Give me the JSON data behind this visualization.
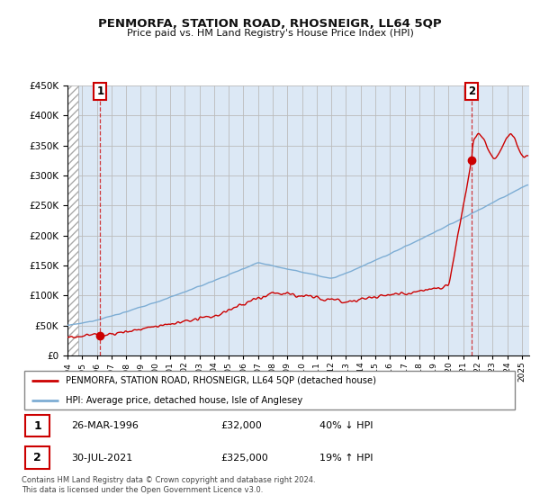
{
  "title": "PENMORFA, STATION ROAD, RHOSNEIGR, LL64 5QP",
  "subtitle": "Price paid vs. HM Land Registry's House Price Index (HPI)",
  "ylim": [
    0,
    450000
  ],
  "xlim_start": 1994.0,
  "xlim_end": 2025.5,
  "xticks": [
    1994,
    1995,
    1996,
    1997,
    1998,
    1999,
    2000,
    2001,
    2002,
    2003,
    2004,
    2005,
    2006,
    2007,
    2008,
    2009,
    2010,
    2011,
    2012,
    2013,
    2014,
    2015,
    2016,
    2017,
    2018,
    2019,
    2020,
    2021,
    2022,
    2023,
    2024,
    2025
  ],
  "hpi_color": "#7dadd4",
  "price_color": "#cc0000",
  "sale1_year": 1996.23,
  "sale1_price": 32000,
  "sale1_label": "1",
  "sale2_year": 2021.58,
  "sale2_price": 325000,
  "sale2_label": "2",
  "legend_line1": "PENMORFA, STATION ROAD, RHOSNEIGR, LL64 5QP (detached house)",
  "legend_line2": "HPI: Average price, detached house, Isle of Anglesey",
  "table_row1": [
    "1",
    "26-MAR-1996",
    "£32,000",
    "40% ↓ HPI"
  ],
  "table_row2": [
    "2",
    "30-JUL-2021",
    "£325,000",
    "19% ↑ HPI"
  ],
  "footnote": "Contains HM Land Registry data © Crown copyright and database right 2024.\nThis data is licensed under the Open Government Licence v3.0.",
  "bg_plot_color": "#dce8f5",
  "bg_hatch_color": "#d0d0d0",
  "grid_color": "#bbbbbb",
  "title_color": "#111111",
  "label_box_color": "#cc0000",
  "hatch_end": 1994.75
}
